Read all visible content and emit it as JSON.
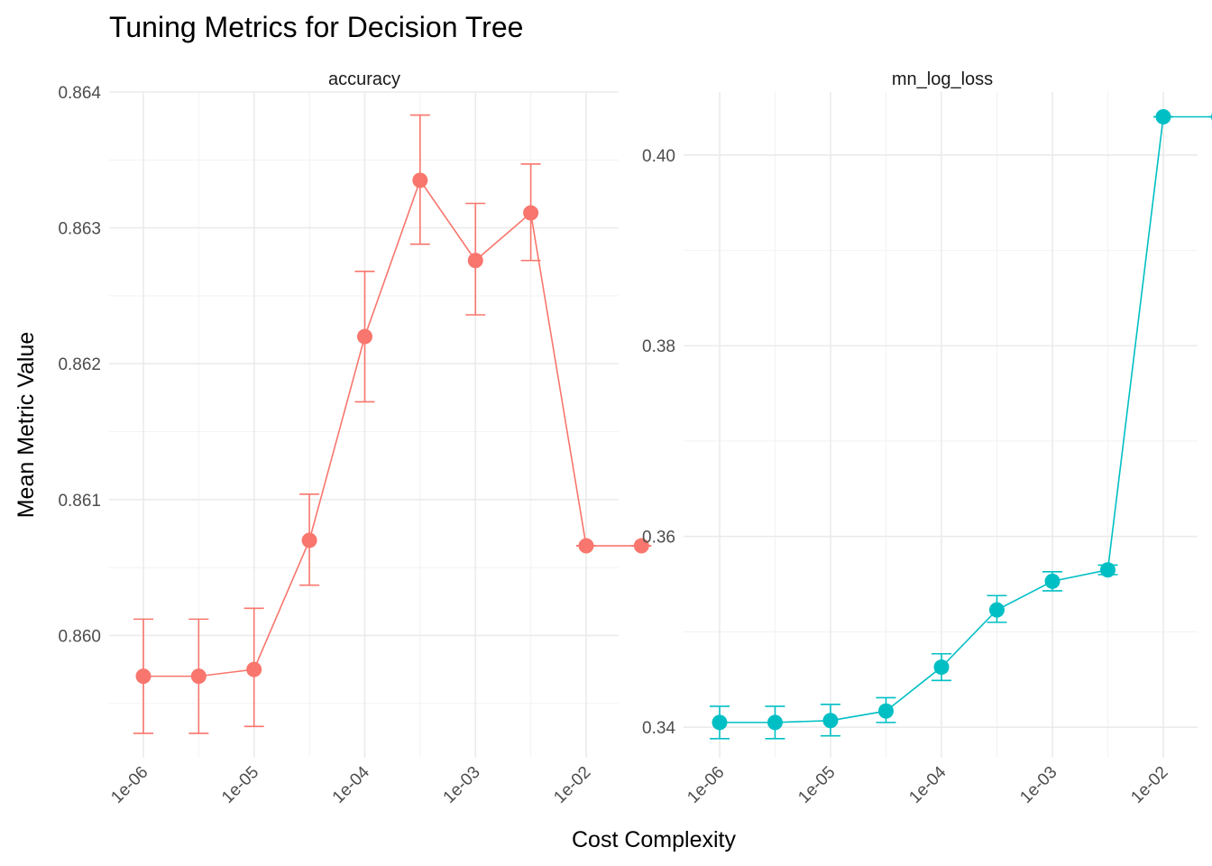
{
  "chart_data": {
    "type": "line",
    "title": "Tuning Metrics for Decision Tree",
    "xlabel": "Cost Complexity",
    "ylabel": "Mean Metric Value",
    "x_scale": "log10",
    "x_ticks": [
      1e-06,
      1e-05,
      0.0001,
      0.001,
      0.01
    ],
    "x_tick_labels": [
      "1e-06",
      "1e-05",
      "1e-04",
      "1e-03",
      "1e-02"
    ],
    "x": [
      1e-06,
      3.16e-06,
      9.99e-06,
      3.16e-05,
      0.0001,
      0.000316,
      0.001,
      0.00316,
      0.01,
      0.0316
    ],
    "grid": true,
    "legend": "none",
    "facets": [
      {
        "strip": "accuracy",
        "color": "#F8766D",
        "ylim": [
          0.8591,
          0.864
        ],
        "y_ticks": [
          0.86,
          0.861,
          0.862,
          0.863,
          0.864
        ],
        "y_tick_labels": [
          "0.860",
          "0.861",
          "0.862",
          "0.863",
          "0.864"
        ],
        "series": [
          {
            "mean": [
              0.8597,
              0.8597,
              0.85975,
              0.8607,
              0.8622,
              0.86335,
              0.86276,
              0.86311,
              0.86066,
              0.86066
            ],
            "lower": [
              0.85928,
              0.85928,
              0.85933,
              0.86037,
              0.86172,
              0.86288,
              0.86236,
              0.86276,
              0.86066,
              0.86066
            ],
            "upper": [
              0.86012,
              0.86012,
              0.8602,
              0.86104,
              0.86268,
              0.86383,
              0.86318,
              0.86347,
              0.86066,
              0.86066
            ]
          }
        ]
      },
      {
        "strip": "mn_log_loss",
        "color": "#00BFC4",
        "ylim": [
          0.3368,
          0.4066
        ],
        "y_ticks": [
          0.34,
          0.36,
          0.38,
          0.4
        ],
        "y_tick_labels": [
          "0.34",
          "0.36",
          "0.38",
          "0.40"
        ],
        "series": [
          {
            "mean": [
              0.3405,
              0.3405,
              0.3407,
              0.3417,
              0.3463,
              0.3523,
              0.3553,
              0.3565,
              0.404,
              0.404
            ],
            "lower": [
              0.3388,
              0.3388,
              0.3391,
              0.3405,
              0.3449,
              0.351,
              0.3543,
              0.356,
              0.404,
              0.404
            ],
            "upper": [
              0.3422,
              0.3422,
              0.3424,
              0.3431,
              0.3477,
              0.3538,
              0.3563,
              0.357,
              0.404,
              0.404
            ]
          }
        ]
      }
    ]
  }
}
